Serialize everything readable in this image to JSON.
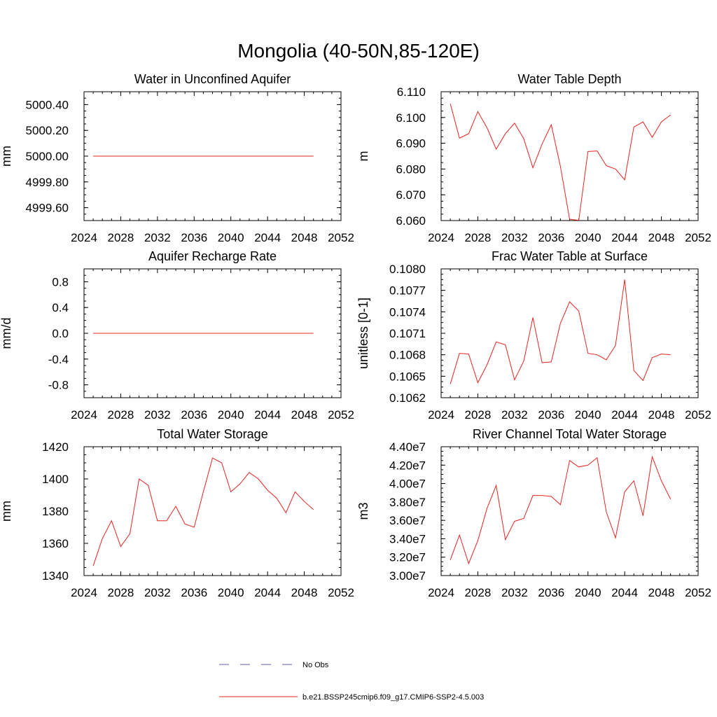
{
  "title": "Mongolia (40-50N,85-120E)",
  "legend": {
    "items": [
      {
        "label": "No Obs",
        "style": "dashed",
        "color": "#5b5fb3"
      },
      {
        "label": "b.e21.BSSP245cmip6.f09_g17.CMIP6-SSP2-4.5.003",
        "style": "solid",
        "color": "#e8241f"
      }
    ]
  },
  "colors": {
    "series": "#e8241f",
    "axis": "#000000"
  },
  "chart_data": [
    {
      "type": "line",
      "title": "Water in Unconfined Aquifer",
      "ylabel": "mm",
      "xlim": [
        2024,
        2052
      ],
      "xticks": [
        2024,
        2028,
        2032,
        2036,
        2040,
        2044,
        2048,
        2052
      ],
      "xtick_labels": [
        "2024",
        "2028",
        "2032",
        "2036",
        "2040",
        "2044",
        "2048",
        "2052"
      ],
      "ylim": [
        4999.5,
        5000.5
      ],
      "yticks": [
        4999.6,
        4999.8,
        5000.0,
        5000.2,
        5000.4
      ],
      "ytick_labels": [
        "4999.60",
        "4999.80",
        "5000.00",
        "5000.20",
        "5000.40"
      ],
      "series": [
        {
          "name": "b.e21.BSSP245cmip6.f09_g17.CMIP6-SSP2-4.5.003",
          "x": [
            2025,
            2026,
            2027,
            2028,
            2029,
            2030,
            2031,
            2032,
            2033,
            2034,
            2035,
            2036,
            2037,
            2038,
            2039,
            2040,
            2041,
            2042,
            2043,
            2044,
            2045,
            2046,
            2047,
            2048,
            2049
          ],
          "values": [
            5000,
            5000,
            5000,
            5000,
            5000,
            5000,
            5000,
            5000,
            5000,
            5000,
            5000,
            5000,
            5000,
            5000,
            5000,
            5000,
            5000,
            5000,
            5000,
            5000,
            5000,
            5000,
            5000,
            5000,
            5000
          ]
        }
      ]
    },
    {
      "type": "line",
      "title": "Water Table Depth",
      "ylabel": "m",
      "xlim": [
        2024,
        2052
      ],
      "xticks": [
        2024,
        2028,
        2032,
        2036,
        2040,
        2044,
        2048,
        2052
      ],
      "xtick_labels": [
        "2024",
        "2028",
        "2032",
        "2036",
        "2040",
        "2044",
        "2048",
        "2052"
      ],
      "ylim": [
        6.06,
        6.11
      ],
      "yticks": [
        6.06,
        6.07,
        6.08,
        6.09,
        6.1,
        6.11
      ],
      "ytick_labels": [
        "6.060",
        "6.070",
        "6.080",
        "6.090",
        "6.100",
        "6.110"
      ],
      "series": [
        {
          "name": "b.e21.BSSP245cmip6.f09_g17.CMIP6-SSP2-4.5.003",
          "x": [
            2025,
            2026,
            2027,
            2028,
            2029,
            2030,
            2031,
            2032,
            2033,
            2034,
            2035,
            2036,
            2037,
            2038,
            2039,
            2040,
            2041,
            2042,
            2043,
            2044,
            2045,
            2046,
            2047,
            2048,
            2049
          ],
          "values": [
            6.1053,
            6.092,
            6.0937,
            6.1023,
            6.096,
            6.0877,
            6.0937,
            6.0978,
            6.0918,
            6.0805,
            6.0897,
            6.0972,
            6.081,
            6.0605,
            6.0601,
            6.0868,
            6.087,
            6.0813,
            6.08,
            6.0758,
            6.0963,
            6.0983,
            6.0923,
            6.0983,
            6.101
          ]
        }
      ]
    },
    {
      "type": "line",
      "title": "Aquifer Recharge Rate",
      "ylabel": "mm/d",
      "xlim": [
        2024,
        2052
      ],
      "xticks": [
        2024,
        2028,
        2032,
        2036,
        2040,
        2044,
        2048,
        2052
      ],
      "xtick_labels": [
        "2024",
        "2028",
        "2032",
        "2036",
        "2040",
        "2044",
        "2048",
        "2052"
      ],
      "ylim": [
        -1.0,
        1.0
      ],
      "yticks": [
        -0.8,
        -0.4,
        0.0,
        0.4,
        0.8
      ],
      "ytick_labels": [
        "-0.8",
        "-0.4",
        "0.0",
        "0.4",
        "0.8"
      ],
      "series": [
        {
          "name": "b.e21.BSSP245cmip6.f09_g17.CMIP6-SSP2-4.5.003",
          "x": [
            2025,
            2026,
            2027,
            2028,
            2029,
            2030,
            2031,
            2032,
            2033,
            2034,
            2035,
            2036,
            2037,
            2038,
            2039,
            2040,
            2041,
            2042,
            2043,
            2044,
            2045,
            2046,
            2047,
            2048,
            2049
          ],
          "values": [
            0,
            0,
            0,
            0,
            0,
            0,
            0,
            0,
            0,
            0,
            0,
            0,
            0,
            0,
            0,
            0,
            0,
            0,
            0,
            0,
            0,
            0,
            0,
            0,
            0
          ]
        }
      ]
    },
    {
      "type": "line",
      "title": "Frac Water Table at Surface",
      "ylabel": "unitless [0-1]",
      "xlim": [
        2024,
        2052
      ],
      "xticks": [
        2024,
        2028,
        2032,
        2036,
        2040,
        2044,
        2048,
        2052
      ],
      "xtick_labels": [
        "2024",
        "2028",
        "2032",
        "2036",
        "2040",
        "2044",
        "2048",
        "2052"
      ],
      "ylim": [
        0.1062,
        0.108
      ],
      "yticks": [
        0.1062,
        0.1065,
        0.1068,
        0.1071,
        0.1074,
        0.1077,
        0.108
      ],
      "ytick_labels": [
        "0.1062",
        "0.1065",
        "0.1068",
        "0.1071",
        "0.1074",
        "0.1077",
        "0.1080"
      ],
      "series": [
        {
          "name": "b.e21.BSSP245cmip6.f09_g17.CMIP6-SSP2-4.5.003",
          "x": [
            2025,
            2026,
            2027,
            2028,
            2029,
            2030,
            2031,
            2032,
            2033,
            2034,
            2035,
            2036,
            2037,
            2038,
            2039,
            2040,
            2041,
            2042,
            2043,
            2044,
            2045,
            2046,
            2047,
            2048,
            2049
          ],
          "values": [
            0.10639,
            0.10682,
            0.10681,
            0.10641,
            0.10666,
            0.10698,
            0.10694,
            0.10645,
            0.10671,
            0.10732,
            0.10669,
            0.1067,
            0.10724,
            0.10754,
            0.10741,
            0.10682,
            0.1068,
            0.10673,
            0.10693,
            0.10785,
            0.10658,
            0.10644,
            0.10676,
            0.10681,
            0.1068
          ]
        }
      ]
    },
    {
      "type": "line",
      "title": "Total Water Storage",
      "ylabel": "mm",
      "xlim": [
        2024,
        2052
      ],
      "xticks": [
        2024,
        2028,
        2032,
        2036,
        2040,
        2044,
        2048,
        2052
      ],
      "xtick_labels": [
        "2024",
        "2028",
        "2032",
        "2036",
        "2040",
        "2044",
        "2048",
        "2052"
      ],
      "ylim": [
        1340,
        1420
      ],
      "yticks": [
        1340,
        1360,
        1380,
        1400,
        1420
      ],
      "ytick_labels": [
        "1340",
        "1360",
        "1380",
        "1400",
        "1420"
      ],
      "series": [
        {
          "name": "b.e21.BSSP245cmip6.f09_g17.CMIP6-SSP2-4.5.003",
          "x": [
            2025,
            2026,
            2027,
            2028,
            2029,
            2030,
            2031,
            2032,
            2033,
            2034,
            2035,
            2036,
            2037,
            2038,
            2039,
            2040,
            2041,
            2042,
            2043,
            2044,
            2045,
            2046,
            2047,
            2048,
            2049
          ],
          "values": [
            1346,
            1363,
            1374,
            1358,
            1366,
            1400,
            1396,
            1374,
            1374,
            1383,
            1372,
            1370,
            1392,
            1413,
            1410,
            1392,
            1397,
            1404,
            1400,
            1393,
            1388,
            1379,
            1392,
            1386,
            1381
          ]
        }
      ]
    },
    {
      "type": "line",
      "title": "River Channel Total Water Storage",
      "ylabel": "m3",
      "xlim": [
        2024,
        2052
      ],
      "xticks": [
        2024,
        2028,
        2032,
        2036,
        2040,
        2044,
        2048,
        2052
      ],
      "xtick_labels": [
        "2024",
        "2028",
        "2032",
        "2036",
        "2040",
        "2044",
        "2048",
        "2052"
      ],
      "ylim": [
        30000000,
        44000000
      ],
      "yticks": [
        30000000,
        32000000,
        34000000,
        36000000,
        38000000,
        40000000,
        42000000,
        44000000
      ],
      "ytick_labels": [
        "3.00e7",
        "3.20e7",
        "3.40e7",
        "3.60e7",
        "3.80e7",
        "4.00e7",
        "4.20e7",
        "4.40e7"
      ],
      "series": [
        {
          "name": "b.e21.BSSP245cmip6.f09_g17.CMIP6-SSP2-4.5.003",
          "x": [
            2025,
            2026,
            2027,
            2028,
            2029,
            2030,
            2031,
            2032,
            2033,
            2034,
            2035,
            2036,
            2037,
            2038,
            2039,
            2040,
            2041,
            2042,
            2043,
            2044,
            2045,
            2046,
            2047,
            2048,
            2049
          ],
          "values": [
            31700000,
            34400000,
            31300000,
            33800000,
            37300000,
            39800000,
            33900000,
            35900000,
            36200000,
            38700000,
            38700000,
            38600000,
            37700000,
            42500000,
            41800000,
            42000000,
            42800000,
            36900000,
            34100000,
            39100000,
            40300000,
            36500000,
            42900000,
            40300000,
            38300000
          ]
        }
      ]
    }
  ]
}
